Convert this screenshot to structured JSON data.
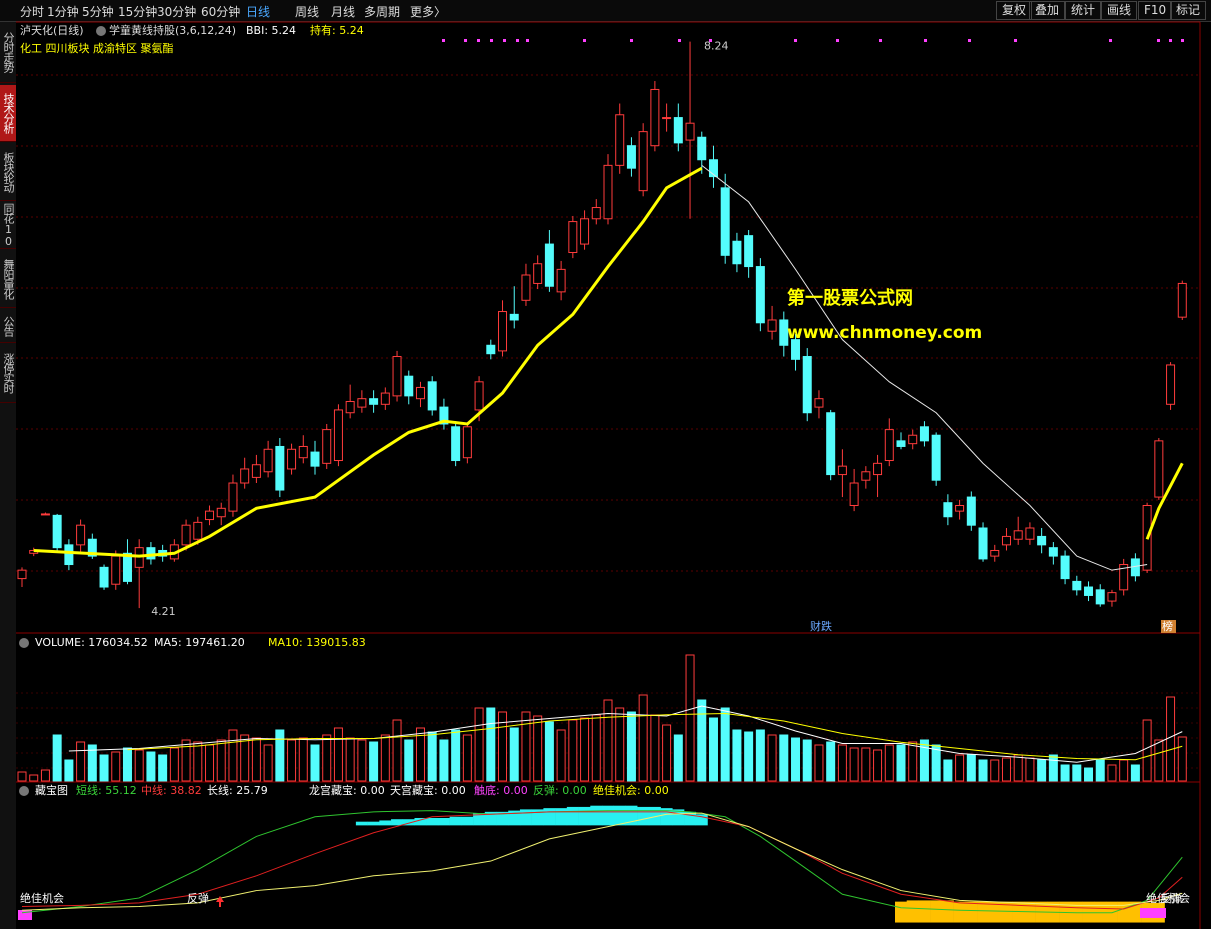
{
  "toolbar": {
    "periods": [
      "分时",
      "1分钟",
      "5分钟",
      "15分钟",
      "30分钟",
      "60分钟",
      "日线",
      "周线",
      "月线",
      "多周期",
      "更多〉"
    ],
    "active_index": 6,
    "buttons": [
      "复权",
      "叠加",
      "统计",
      "画线",
      "F10",
      "标记"
    ]
  },
  "sidebar": {
    "items": [
      "分时走势",
      "技术分析",
      "板块轮动",
      "同花10",
      "舞阳量化",
      "公告",
      "涨停实时"
    ],
    "active_index": 1
  },
  "chart_data": [
    {
      "type": "candlestick",
      "title": "泸天化(日线)",
      "indicator_name": "学童黄线持股(3,6,12,24)",
      "legend": [
        "BBI: 5.24",
        "持有: 5.24"
      ],
      "sectors": "化工 四川板块 成渝特区 聚氨酯",
      "ylim": [
        4.04,
        8.38
      ],
      "up_color": "#ff3c3c",
      "down_color": "#54fcfc",
      "open": [
        4.42,
        4.6,
        4.88,
        4.87,
        4.66,
        4.66,
        4.7,
        4.5,
        4.38,
        4.6,
        4.5,
        4.64,
        4.62,
        4.56,
        4.66,
        4.7,
        4.84,
        4.86,
        4.9,
        5.1,
        5.14,
        5.18,
        5.36,
        5.2,
        5.28,
        5.32,
        5.24,
        5.26,
        5.6,
        5.64,
        5.7,
        5.66,
        5.72,
        5.86,
        5.7,
        5.82,
        5.64,
        5.5,
        5.28,
        5.62,
        6.08,
        6.04,
        6.3,
        6.4,
        6.52,
        6.8,
        6.46,
        6.74,
        6.8,
        6.98,
        6.98,
        7.36,
        7.5,
        7.18,
        7.5,
        7.7,
        7.7,
        7.54,
        7.56,
        7.4,
        7.2,
        6.82,
        6.86,
        6.64,
        6.18,
        6.26,
        6.12,
        6.0,
        5.64,
        5.6,
        5.16,
        4.94,
        5.12,
        5.16,
        5.26,
        5.4,
        5.38,
        5.5,
        5.44,
        4.96,
        4.9,
        5.0,
        4.78,
        4.58,
        4.66,
        4.7,
        4.7,
        4.72,
        4.64,
        4.58,
        4.4,
        4.36,
        4.34,
        4.26,
        4.34,
        4.56,
        4.48,
        5.0,
        5.66,
        6.28
      ],
      "close": [
        4.48,
        4.62,
        4.88,
        4.64,
        4.52,
        4.8,
        4.58,
        4.36,
        4.58,
        4.4,
        4.64,
        4.56,
        4.58,
        4.66,
        4.8,
        4.82,
        4.9,
        4.92,
        5.1,
        5.2,
        5.23,
        5.34,
        5.05,
        5.34,
        5.36,
        5.22,
        5.48,
        5.62,
        5.68,
        5.7,
        5.66,
        5.74,
        6.0,
        5.72,
        5.78,
        5.62,
        5.52,
        5.26,
        5.5,
        5.82,
        6.02,
        6.32,
        6.26,
        6.58,
        6.66,
        6.5,
        6.62,
        6.96,
        6.98,
        7.06,
        7.36,
        7.72,
        7.34,
        7.6,
        7.9,
        7.7,
        7.52,
        7.66,
        7.4,
        7.28,
        6.72,
        6.66,
        6.64,
        6.24,
        6.26,
        6.08,
        5.98,
        5.6,
        5.7,
        5.16,
        5.22,
        5.1,
        5.18,
        5.24,
        5.48,
        5.36,
        5.44,
        5.4,
        5.12,
        4.86,
        4.94,
        4.8,
        4.56,
        4.62,
        4.72,
        4.76,
        4.78,
        4.66,
        4.58,
        4.42,
        4.34,
        4.3,
        4.24,
        4.32,
        4.52,
        4.44,
        4.94,
        5.4,
        5.94,
        6.52
      ],
      "low": [
        4.36,
        4.58,
        4.88,
        4.62,
        4.48,
        4.6,
        4.56,
        4.34,
        4.34,
        4.38,
        4.21,
        4.52,
        4.54,
        4.54,
        4.62,
        4.66,
        4.8,
        4.8,
        4.86,
        5.06,
        5.1,
        5.14,
        5.0,
        5.16,
        5.24,
        5.16,
        5.2,
        5.22,
        5.56,
        5.6,
        5.6,
        5.62,
        5.68,
        5.66,
        5.64,
        5.58,
        5.48,
        5.22,
        5.24,
        5.54,
        5.98,
        6.0,
        6.2,
        6.36,
        6.48,
        6.46,
        6.4,
        6.7,
        6.76,
        6.94,
        6.94,
        7.3,
        7.28,
        7.14,
        7.46,
        7.6,
        7.46,
        6.98,
        7.3,
        7.2,
        6.66,
        6.6,
        6.56,
        6.18,
        6.12,
        6.0,
        5.9,
        5.54,
        5.56,
        5.12,
        5.0,
        4.9,
        5.06,
        5.0,
        5.22,
        5.34,
        5.34,
        5.36,
        5.08,
        4.8,
        4.84,
        4.76,
        4.54,
        4.54,
        4.62,
        4.66,
        4.66,
        4.6,
        4.52,
        4.38,
        4.3,
        4.26,
        4.22,
        4.22,
        4.3,
        4.4,
        4.46,
        4.98,
        5.62,
        6.26
      ],
      "high": [
        4.5,
        4.64,
        4.89,
        4.88,
        4.7,
        4.84,
        4.74,
        4.52,
        4.62,
        4.7,
        4.7,
        4.68,
        4.66,
        4.7,
        4.84,
        4.86,
        4.94,
        4.96,
        5.16,
        5.28,
        5.3,
        5.4,
        5.42,
        5.38,
        5.44,
        5.4,
        5.52,
        5.66,
        5.8,
        5.76,
        5.76,
        5.78,
        6.04,
        5.9,
        5.82,
        5.86,
        5.7,
        5.54,
        5.52,
        5.86,
        6.12,
        6.4,
        6.5,
        6.66,
        6.72,
        6.9,
        6.68,
        7.0,
        7.04,
        7.12,
        7.44,
        7.8,
        7.56,
        7.66,
        7.96,
        7.8,
        7.8,
        8.24,
        7.6,
        7.5,
        7.3,
        6.88,
        6.9,
        6.7,
        6.36,
        6.32,
        6.16,
        6.06,
        5.76,
        5.62,
        5.34,
        5.2,
        5.22,
        5.3,
        5.56,
        5.46,
        5.48,
        5.54,
        5.46,
        5.02,
        4.98,
        5.04,
        4.82,
        4.66,
        4.78,
        4.86,
        4.82,
        4.78,
        4.68,
        4.62,
        4.44,
        4.4,
        4.38,
        4.34,
        4.56,
        4.6,
        4.96,
        5.42,
        5.96,
        6.54
      ],
      "lines": [
        {
          "color": "#ffff00",
          "x": [
            1,
            10,
            13,
            16,
            20,
            25,
            30,
            33,
            36,
            38,
            41,
            44,
            47,
            50,
            53,
            55,
            58,
            59,
            96,
            97,
            99
          ],
          "values": [
            4.62,
            4.58,
            4.6,
            4.72,
            4.92,
            5.0,
            5.3,
            5.46,
            5.54,
            5.52,
            5.74,
            6.08,
            6.3,
            6.64,
            6.96,
            7.2,
            7.34,
            null,
            4.7,
            4.92,
            5.24
          ]
        },
        {
          "color": "#e8e8e8",
          "x": [
            58,
            62,
            66,
            70,
            74,
            78,
            82,
            86,
            90,
            93,
            96
          ],
          "values": [
            7.36,
            7.1,
            6.62,
            6.12,
            5.82,
            5.6,
            5.24,
            4.94,
            4.58,
            4.48,
            4.52
          ]
        }
      ],
      "high_label": 8.24,
      "low_label": 4.21,
      "annotations": [
        "财跌",
        "榜"
      ],
      "watermark": [
        "第一股票公式网",
        "www.chnmoney.com"
      ]
    },
    {
      "type": "bar",
      "legend": [
        "VOLUME: 176034.52",
        "MA5: 197461.20",
        "MA10: 139015.83"
      ],
      "ylim": [
        0,
        576000
      ],
      "values": [
        36000,
        24000,
        44000,
        184000,
        84000,
        156000,
        144000,
        104000,
        116000,
        132000,
        124000,
        116000,
        104000,
        132000,
        164000,
        156000,
        144000,
        164000,
        204000,
        184000,
        172000,
        144000,
        204000,
        164000,
        172000,
        144000,
        184000,
        212000,
        172000,
        164000,
        156000,
        184000,
        244000,
        164000,
        212000,
        196000,
        164000,
        204000,
        184000,
        292000,
        292000,
        276000,
        212000,
        276000,
        260000,
        236000,
        204000,
        244000,
        252000,
        264000,
        324000,
        292000,
        276000,
        344000,
        264000,
        224000,
        184000,
        504000,
        324000,
        252000,
        292000,
        204000,
        196000,
        204000,
        184000,
        184000,
        172000,
        164000,
        144000,
        156000,
        144000,
        132000,
        132000,
        124000,
        144000,
        144000,
        156000,
        164000,
        144000,
        84000,
        104000,
        104000,
        84000,
        84000,
        92000,
        104000,
        92000,
        84000,
        104000,
        64000,
        64000,
        52000,
        84000,
        64000,
        84000,
        64000,
        244000,
        164000,
        336000,
        176034.52
      ],
      "lines": [
        {
          "color": "#ffffff",
          "x": [
            4,
            10,
            15,
            20,
            25,
            30,
            35,
            40,
            45,
            50,
            55,
            58,
            62,
            66,
            70,
            75,
            80,
            85,
            90,
            95,
            99
          ],
          "values": [
            120000,
            130000,
            150000,
            170000,
            165000,
            170000,
            195000,
            230000,
            250000,
            270000,
            260000,
            300000,
            260000,
            200000,
            150000,
            150000,
            110000,
            95000,
            75000,
            110000,
            197461.2
          ]
        },
        {
          "color": "#ffff00",
          "x": [
            9,
            15,
            20,
            25,
            30,
            35,
            40,
            45,
            50,
            55,
            60,
            65,
            70,
            75,
            80,
            85,
            90,
            95,
            99
          ],
          "values": [
            125000,
            140000,
            165000,
            170000,
            170000,
            185000,
            210000,
            240000,
            255000,
            265000,
            270000,
            240000,
            190000,
            155000,
            130000,
            105000,
            90000,
            85000,
            139015.83
          ]
        }
      ]
    },
    {
      "type": "line",
      "title": "藏宝图",
      "ylim": [
        0,
        100
      ],
      "legend": [
        {
          "text": "短线: 55.12",
          "color": "#3ad43a"
        },
        {
          "text": "中线: 38.82",
          "color": "#ff3c3c"
        },
        {
          "text": "长线: 25.79",
          "color": "#ffffff"
        },
        {
          "text": "龙宫藏宝: 0.00",
          "color": "#ffffff"
        },
        {
          "text": "天宫藏宝: 0.00",
          "color": "#ffffff"
        },
        {
          "text": "触底: 0.00",
          "color": "#ff44ff"
        },
        {
          "text": "反弹: 0.00",
          "color": "#3ad43a"
        },
        {
          "text": "绝佳机会: 0.00",
          "color": "#ffff00"
        }
      ],
      "series": [
        {
          "color": "#2fc42f",
          "x": [
            0,
            5,
            10,
            15,
            20,
            25,
            30,
            35,
            40,
            45,
            50,
            55,
            57,
            60,
            63,
            66,
            70,
            75,
            80,
            85,
            90,
            93,
            96,
            99
          ],
          "values": [
            10,
            15,
            22,
            45,
            72,
            88,
            92,
            93,
            90,
            92,
            93,
            93,
            92,
            88,
            72,
            52,
            25,
            14,
            12,
            11,
            10,
            10,
            20,
            55.12
          ]
        },
        {
          "color": "#e02020",
          "x": [
            0,
            5,
            10,
            15,
            20,
            25,
            30,
            35,
            40,
            45,
            50,
            55,
            58,
            62,
            66,
            70,
            75,
            80,
            85,
            90,
            94,
            97,
            99
          ],
          "values": [
            15,
            16,
            18,
            25,
            40,
            58,
            75,
            88,
            90,
            92,
            92,
            92,
            88,
            80,
            62,
            42,
            25,
            18,
            16,
            14,
            13,
            22,
            38.82
          ]
        },
        {
          "color": "#f0f070",
          "x": [
            0,
            5,
            10,
            15,
            20,
            25,
            30,
            35,
            40,
            45,
            50,
            55,
            58,
            62,
            66,
            70,
            75,
            80,
            85,
            90,
            94,
            97,
            99
          ],
          "values": [
            12,
            14,
            15,
            18,
            28,
            32,
            40,
            44,
            52,
            70,
            80,
            90,
            91,
            80,
            62,
            45,
            28,
            20,
            18,
            16,
            16,
            20,
            25.79
          ]
        }
      ],
      "bars": [
        {
          "color": "#28f0f0",
          "x": [
            29,
            30,
            31,
            32,
            33,
            34,
            35,
            36,
            37,
            38,
            39,
            40,
            41,
            42,
            43,
            44,
            45,
            46,
            47,
            48,
            49,
            50,
            51,
            52,
            53,
            54,
            55,
            56,
            57,
            58
          ],
          "low": [
            81,
            81,
            81,
            81,
            81,
            81,
            81,
            81,
            81,
            81,
            81,
            81,
            81,
            81,
            81,
            81,
            81,
            81,
            81,
            81,
            81,
            81,
            81,
            81,
            81,
            81,
            81,
            81,
            81,
            81
          ],
          "high": [
            84,
            84,
            85,
            86,
            86,
            87,
            87,
            87,
            88,
            88,
            91,
            92,
            92,
            93,
            94,
            94,
            95,
            95,
            96,
            96,
            97,
            97,
            97,
            97,
            96,
            96,
            95,
            94,
            92,
            90
          ]
        },
        {
          "color": "#ffc000",
          "x": [
            75,
            76,
            77,
            78,
            79,
            80,
            81,
            82,
            83,
            84,
            85,
            86,
            87,
            88,
            89,
            90,
            91,
            92,
            93,
            94,
            95,
            96,
            97
          ],
          "low": [
            2,
            2,
            2,
            2,
            2,
            2,
            2,
            2,
            2,
            2,
            2,
            2,
            2,
            2,
            2,
            2,
            2,
            2,
            2,
            2,
            2,
            2,
            2
          ],
          "high": [
            19,
            20,
            20,
            20,
            20,
            19,
            19,
            19,
            19,
            19,
            19,
            19,
            19,
            19,
            19,
            19,
            19,
            19,
            19,
            19,
            19,
            18,
            18
          ]
        }
      ],
      "annotations": [
        "绝佳机会",
        "反弹",
        "绝佳机会",
        "反弹"
      ]
    }
  ]
}
